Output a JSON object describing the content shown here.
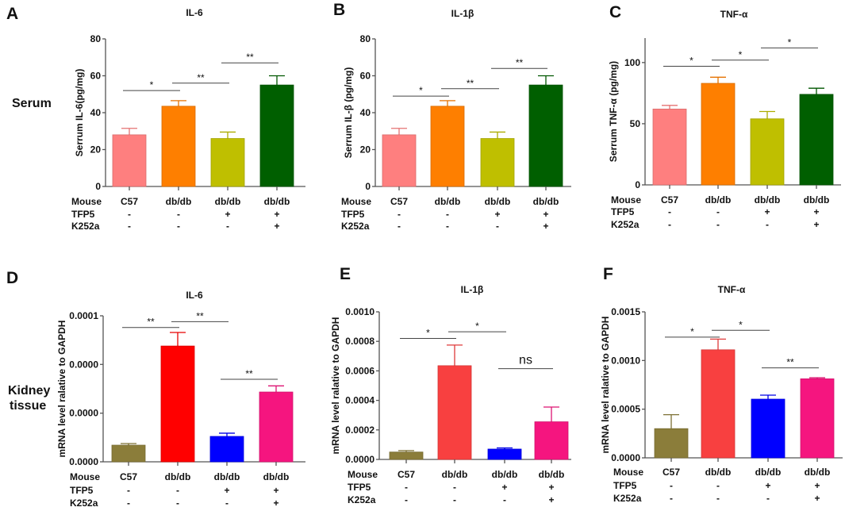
{
  "side_labels": {
    "serum": "Serum",
    "kidney_line1": "Kidney",
    "kidney_line2": "tissue"
  },
  "row_labels": [
    "Mouse",
    "TFP5",
    "K252a"
  ],
  "groups": {
    "mouse": [
      "C57",
      "db/db",
      "db/db",
      "db/db"
    ],
    "tfp5": [
      "-",
      "-",
      "+",
      "+"
    ],
    "k252a": [
      "-",
      "-",
      "-",
      "+"
    ]
  },
  "colors": {
    "serum": [
      "#fe7f7f",
      "#fe7f00",
      "#bfbf00",
      "#005f00"
    ],
    "kidney_D": [
      "#8b7d3a",
      "#ff0000",
      "#0000ff",
      "#f5157f"
    ],
    "kidney_EF": [
      "#8b7d3a",
      "#f84040",
      "#0000ff",
      "#f5157f"
    ]
  },
  "chart_data": [
    {
      "panel": "A",
      "type": "bar",
      "title": "IL-6",
      "ylabel": "Serrum IL-6(pg/mg)",
      "ylim": [
        0,
        80
      ],
      "ticks": [
        0,
        20,
        40,
        60,
        80
      ],
      "tick_labels": [
        "0",
        "20",
        "40",
        "60",
        "80"
      ],
      "values": [
        28,
        43.5,
        26,
        55
      ],
      "errors": [
        3.5,
        3,
        3.5,
        5
      ],
      "palette": "serum",
      "significance": [
        {
          "from": 0,
          "to": 1,
          "y": 52,
          "label": "*"
        },
        {
          "from": 1,
          "to": 2,
          "y": 56,
          "label": "**"
        },
        {
          "from": 2,
          "to": 3,
          "y": 67,
          "label": "**"
        }
      ]
    },
    {
      "panel": "B",
      "type": "bar",
      "title": "IL-1β",
      "ylabel": "Serrum IL-β (pg/mg)",
      "ylim": [
        0,
        80
      ],
      "ticks": [
        0,
        20,
        40,
        60,
        80
      ],
      "tick_labels": [
        "0",
        "20",
        "40",
        "60",
        "80"
      ],
      "values": [
        28,
        43.5,
        26,
        55
      ],
      "errors": [
        3.5,
        3,
        3.5,
        5
      ],
      "palette": "serum",
      "significance": [
        {
          "from": 0,
          "to": 1,
          "y": 49,
          "label": "*"
        },
        {
          "from": 1,
          "to": 2,
          "y": 53,
          "label": "**"
        },
        {
          "from": 2,
          "to": 3,
          "y": 64,
          "label": "**"
        }
      ]
    },
    {
      "panel": "C",
      "type": "bar",
      "title": "TNF-α",
      "ylabel": "Serrum TNF-α (pg/mg)",
      "ylim": [
        0,
        120
      ],
      "ticks": [
        0,
        50,
        100
      ],
      "tick_labels": [
        "0",
        "50",
        "100"
      ],
      "values": [
        62,
        83,
        54,
        74
      ],
      "errors": [
        3,
        5,
        6,
        5
      ],
      "palette": "serum",
      "significance": [
        {
          "from": 0,
          "to": 1,
          "y": 97,
          "label": "*"
        },
        {
          "from": 1,
          "to": 2,
          "y": 102,
          "label": "*"
        },
        {
          "from": 2,
          "to": 3,
          "y": 112,
          "label": "*"
        }
      ]
    },
    {
      "panel": "D",
      "type": "bar",
      "title": "IL-6",
      "ylabel": "mRNA level ralative to GAPDH",
      "ylim": [
        0,
        0.0001
      ],
      "ticks": [
        0,
        3.33e-05,
        6.67e-05,
        0.0001
      ],
      "tick_labels": [
        "0.0000",
        "0.0000",
        "0.0000",
        "0.0001"
      ],
      "values": [
        1.14e-05,
        7.93e-05,
        1.74e-05,
        4.78e-05
      ],
      "errors": [
        1.1e-06,
        9.3e-06,
        2.2e-06,
        4.2e-06
      ],
      "palette": "kidney_D",
      "significance": [
        {
          "from": 0,
          "to": 1,
          "y": 9.2e-05,
          "label": "**"
        },
        {
          "from": 1,
          "to": 2,
          "y": 9.6e-05,
          "label": "**"
        },
        {
          "from": 2,
          "to": 3,
          "y": 5.65e-05,
          "label": "**"
        }
      ]
    },
    {
      "panel": "E",
      "type": "bar",
      "title": "IL-1β",
      "ylabel": "mRNA level ralative to GAPDH",
      "ylim": [
        0,
        0.001
      ],
      "ticks": [
        0,
        0.0002,
        0.0004,
        0.0006,
        0.0008,
        0.001
      ],
      "tick_labels": [
        "0.0000",
        "0.0002",
        "0.0004",
        "0.0006",
        "0.0008",
        "0.0010"
      ],
      "values": [
        5e-05,
        0.000635,
        7e-05,
        0.000255
      ],
      "errors": [
        1e-05,
        0.00014,
        8e-06,
        0.0001
      ],
      "palette": "kidney_EF",
      "significance": [
        {
          "from": 0,
          "to": 1,
          "y": 0.00082,
          "label": "*"
        },
        {
          "from": 1,
          "to": 2,
          "y": 0.000865,
          "label": "*"
        },
        {
          "from": 2,
          "to": 3,
          "y": 0.000615,
          "label": "ns"
        }
      ]
    },
    {
      "panel": "F",
      "type": "bar",
      "title": "TNF-α",
      "ylabel": "mRNA level ralative to GAPDH",
      "ylim": [
        0,
        0.0015
      ],
      "ticks": [
        0,
        0.0005,
        0.001,
        0.0015
      ],
      "tick_labels": [
        "0.0000",
        "0.0005",
        "0.0010",
        "0.0015"
      ],
      "values": [
        0.0003,
        0.00111,
        0.000603,
        0.000812
      ],
      "errors": [
        0.000143,
        0.00011,
        4.1e-05,
        1.1e-05
      ],
      "palette": "kidney_EF",
      "significance": [
        {
          "from": 0,
          "to": 1,
          "y": 0.00124,
          "label": "*"
        },
        {
          "from": 1,
          "to": 2,
          "y": 0.00131,
          "label": "*"
        },
        {
          "from": 2,
          "to": 3,
          "y": 0.000924,
          "label": "**"
        }
      ]
    }
  ]
}
